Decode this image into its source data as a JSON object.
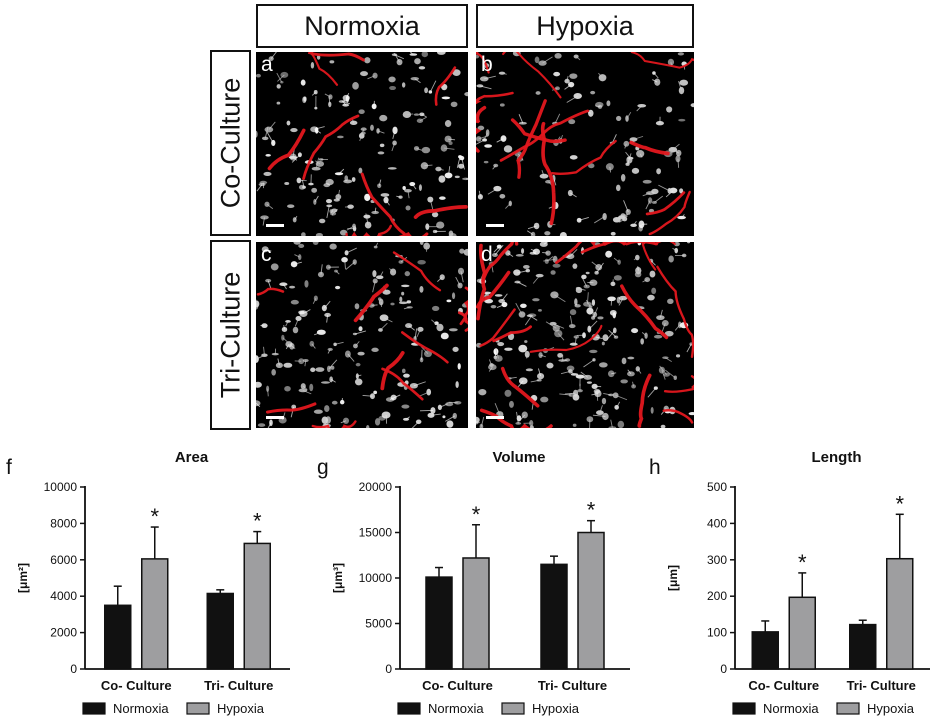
{
  "columns": [
    "Normoxia",
    "Hypoxia"
  ],
  "rows": [
    "Co-Culture",
    "Tri-Culture"
  ],
  "panels": [
    "a",
    "b",
    "c",
    "d"
  ],
  "colors": {
    "normoxia": "#111111",
    "hypoxia": "#9e9ea0",
    "vessel": "#e3171e",
    "cells": "#f2f2f2"
  },
  "chart_data": [
    {
      "label": "f",
      "type": "bar",
      "title": "Area",
      "ylabel": "[μm²]",
      "ylim": [
        0,
        10000
      ],
      "yticks": [
        0,
        2000,
        4000,
        6000,
        8000,
        10000
      ],
      "categories": [
        "Co- Culture",
        "Tri- Culture"
      ],
      "series": [
        {
          "name": "Normoxia",
          "values": [
            3500,
            4150
          ],
          "errors": [
            1050,
            200
          ]
        },
        {
          "name": "Hypoxia",
          "values": [
            6050,
            6900
          ],
          "errors": [
            1750,
            650
          ]
        }
      ],
      "annotations": [
        "*",
        "*"
      ],
      "legend": "bottom"
    },
    {
      "label": "g",
      "type": "bar",
      "title": "Volume",
      "ylabel": "[μm³]",
      "ylim": [
        0,
        20000
      ],
      "yticks": [
        0,
        5000,
        10000,
        15000,
        20000
      ],
      "categories": [
        "Co- Culture",
        "Tri- Culture"
      ],
      "series": [
        {
          "name": "Normoxia",
          "values": [
            10100,
            11500
          ],
          "errors": [
            1050,
            900
          ]
        },
        {
          "name": "Hypoxia",
          "values": [
            12200,
            15000
          ],
          "errors": [
            3650,
            1300
          ]
        }
      ],
      "annotations": [
        "*",
        "*"
      ],
      "legend": "bottom"
    },
    {
      "label": "h",
      "type": "bar",
      "title": "Length",
      "ylabel": "[μm]",
      "ylim": [
        0,
        500
      ],
      "yticks": [
        0,
        100,
        200,
        300,
        400,
        500
      ],
      "categories": [
        "Co- Culture",
        "Tri- Culture"
      ],
      "series": [
        {
          "name": "Normoxia",
          "values": [
            102,
            122
          ],
          "errors": [
            30,
            12
          ]
        },
        {
          "name": "Hypoxia",
          "values": [
            197,
            303
          ],
          "errors": [
            67,
            122
          ]
        }
      ],
      "annotations": [
        "*",
        "*"
      ],
      "legend": "bottom"
    }
  ]
}
